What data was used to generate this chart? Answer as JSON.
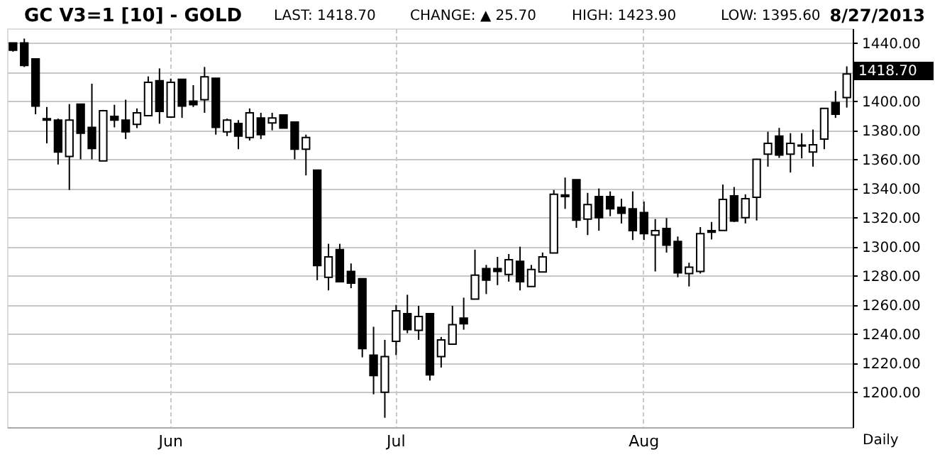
{
  "chart_data": {
    "type": "candlestick",
    "title": "GC V3=1 [10] - GOLD",
    "categories": [
      null,
      null,
      null,
      null,
      null,
      null,
      null,
      null,
      null,
      null,
      null,
      null,
      null,
      null,
      "Jun",
      null,
      null,
      null,
      null,
      null,
      null,
      null,
      null,
      null,
      null,
      null,
      null,
      null,
      null,
      null,
      null,
      null,
      null,
      null,
      "Jul",
      null,
      null,
      null,
      null,
      null,
      null,
      null,
      null,
      null,
      null,
      null,
      null,
      null,
      null,
      null,
      null,
      null,
      null,
      null,
      null,
      null,
      "Aug",
      null,
      null,
      null,
      null,
      null,
      null,
      null,
      null,
      null,
      null,
      null,
      null,
      null,
      null,
      null,
      null,
      null,
      null
    ],
    "ohlc": [
      [
        1440,
        1440,
        1434,
        1435
      ],
      [
        1440,
        1443,
        1423.5,
        1424.5
      ],
      [
        1429,
        1429,
        1391,
        1396.6
      ],
      [
        1388,
        1396,
        1371,
        1387
      ],
      [
        1387,
        1388,
        1356.5,
        1365
      ],
      [
        1362,
        1398,
        1339,
        1387
      ],
      [
        1398,
        1398,
        1360,
        1378
      ],
      [
        1382,
        1412,
        1360,
        1367.5
      ],
      [
        1359,
        1394,
        1359,
        1393.5
      ],
      [
        1389.5,
        1397.5,
        1382,
        1387
      ],
      [
        1387,
        1401,
        1374,
        1379
      ],
      [
        1384,
        1395,
        1381.5,
        1392
      ],
      [
        1390,
        1417,
        1390,
        1413
      ],
      [
        1414,
        1422.5,
        1384.5,
        1393
      ],
      [
        1389,
        1415.5,
        1389,
        1413
      ],
      [
        1415,
        1415,
        1388.5,
        1396.6
      ],
      [
        1400,
        1411,
        1396,
        1397.6
      ],
      [
        1401,
        1423.5,
        1392,
        1416.7
      ],
      [
        1415.7,
        1415.7,
        1377,
        1382
      ],
      [
        1379,
        1388,
        1376,
        1387
      ],
      [
        1384.7,
        1387,
        1367,
        1376
      ],
      [
        1375,
        1395,
        1373,
        1392
      ],
      [
        1388.5,
        1392,
        1374,
        1377
      ],
      [
        1385,
        1392,
        1380,
        1388.5
      ],
      [
        1390.5,
        1390.5,
        1381.5,
        1381.5
      ],
      [
        1385.6,
        1385.6,
        1360,
        1367
      ],
      [
        1367,
        1377,
        1349,
        1375
      ],
      [
        1352.6,
        1353,
        1277,
        1287
      ],
      [
        1279,
        1302,
        1270,
        1293
      ],
      [
        1298,
        1302,
        1276,
        1276
      ],
      [
        1283,
        1288.5,
        1271.5,
        1275
      ],
      [
        1278,
        1278,
        1224,
        1230
      ],
      [
        1225.5,
        1245,
        1198.6,
        1211.5
      ],
      [
        1200,
        1236,
        1182.5,
        1224.5
      ],
      [
        1235,
        1260,
        1225.5,
        1256
      ],
      [
        1254,
        1267,
        1240.6,
        1243
      ],
      [
        1242.6,
        1259.4,
        1236,
        1252
      ],
      [
        1254,
        1254,
        1208,
        1212
      ],
      [
        1224.5,
        1238,
        1217,
        1236
      ],
      [
        1233,
        1259.4,
        1233,
        1246.5
      ],
      [
        1251,
        1265,
        1243,
        1247
      ],
      [
        1264,
        1298,
        1264,
        1280.5
      ],
      [
        1285,
        1287.5,
        1267.5,
        1277
      ],
      [
        1285,
        1293,
        1273.6,
        1283
      ],
      [
        1281,
        1295,
        1276,
        1291
      ],
      [
        1290,
        1300,
        1270,
        1276
      ],
      [
        1272.7,
        1287.5,
        1272.7,
        1284.3
      ],
      [
        1282.7,
        1296,
        1282.7,
        1293
      ],
      [
        1295.7,
        1339,
        1295.7,
        1336
      ],
      [
        1335.5,
        1347.5,
        1326,
        1334.5
      ],
      [
        1346,
        1346,
        1313,
        1318.3
      ],
      [
        1319,
        1337,
        1308,
        1329
      ],
      [
        1334.5,
        1340,
        1311,
        1320
      ],
      [
        1334.5,
        1338,
        1321,
        1326
      ],
      [
        1327,
        1333,
        1316,
        1323
      ],
      [
        1326,
        1338,
        1304.6,
        1311
      ],
      [
        1323.5,
        1331,
        1304.6,
        1309
      ],
      [
        1308,
        1319,
        1283,
        1311
      ],
      [
        1312.5,
        1319.7,
        1296,
        1301
      ],
      [
        1303.6,
        1307,
        1279,
        1282
      ],
      [
        1281.6,
        1289,
        1272.7,
        1285.9
      ],
      [
        1283,
        1313.5,
        1281.6,
        1309
      ],
      [
        1311,
        1317,
        1305,
        1310
      ],
      [
        1311.2,
        1342.7,
        1311.2,
        1332.5
      ],
      [
        1335,
        1341,
        1317,
        1317.6
      ],
      [
        1320,
        1336,
        1316,
        1333
      ],
      [
        1334,
        1360.4,
        1318,
        1360
      ],
      [
        1363.6,
        1379,
        1355,
        1371
      ],
      [
        1376,
        1381.6,
        1361,
        1363
      ],
      [
        1363.6,
        1378,
        1351,
        1371
      ],
      [
        1369.8,
        1378,
        1360.7,
        1369.2
      ],
      [
        1365,
        1380.5,
        1355,
        1370
      ],
      [
        1374,
        1395,
        1367,
        1395
      ],
      [
        1399,
        1407,
        1388.5,
        1391
      ],
      [
        1402.5,
        1423.9,
        1395.6,
        1418.7
      ]
    ],
    "color": "#000000",
    "ylim": [
      1176,
      1450
    ],
    "yticks": [
      {
        "value": 1200,
        "label": "1200.00"
      },
      {
        "value": 1220,
        "label": "1220.00"
      },
      {
        "value": 1240,
        "label": "1240.00"
      },
      {
        "value": 1260,
        "label": "1260.00"
      },
      {
        "value": 1280,
        "label": "1280.00"
      },
      {
        "value": 1300,
        "label": "1300.00"
      },
      {
        "value": 1320,
        "label": "1320.00"
      },
      {
        "value": 1340,
        "label": "1340.00"
      },
      {
        "value": 1360,
        "label": "1360.00"
      },
      {
        "value": 1380,
        "label": "1380.00"
      },
      {
        "value": 1400,
        "label": "1400.00"
      },
      {
        "value": 1420,
        "label": null
      },
      {
        "value": 1440,
        "label": "1440.00"
      }
    ],
    "grid": true,
    "annotations": [
      "LAST: 1418.70",
      "CHANGE: ▲ 25.70",
      "HIGH: 1423.90",
      "LOW: 1395.60",
      "8/27/2013",
      "Daily",
      "1418.70"
    ]
  }
}
